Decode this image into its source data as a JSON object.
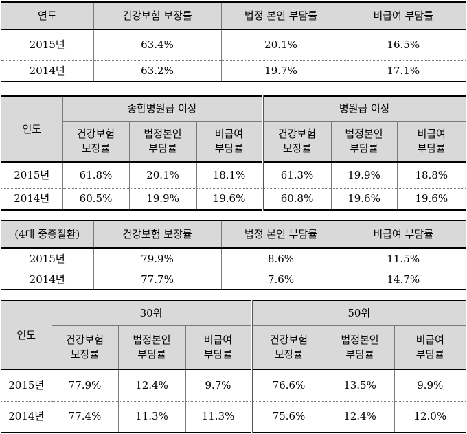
{
  "table1": {
    "headers": [
      "연도",
      "건강보험 보장률",
      "법정 본인 부담률",
      "비급여 부담률"
    ],
    "rows": [
      [
        "2015년",
        "63.4%",
        "20.1%",
        "16.5%"
      ],
      [
        "2014년",
        "63.2%",
        "19.7%",
        "17.1%"
      ]
    ]
  },
  "table2": {
    "year_label": "연도",
    "group1": "종합병원급 이상",
    "group2": "병원급 이상",
    "sub": [
      [
        "건강보험",
        "보장률"
      ],
      [
        "법정본인",
        "부담률"
      ],
      [
        "비급여",
        "부담률"
      ],
      [
        "건강보험",
        "보장률"
      ],
      [
        "법정본인",
        "부담률"
      ],
      [
        "비급여",
        "부담률"
      ]
    ],
    "rows": [
      [
        "2015년",
        "61.8%",
        "20.1%",
        "18.1%",
        "61.3%",
        "19.9%",
        "18.8%"
      ],
      [
        "2014년",
        "60.5%",
        "19.9%",
        "19.6%",
        "60.8%",
        "19.6%",
        "19.6%"
      ]
    ]
  },
  "table3": {
    "headers": [
      "(4대 중증질환)",
      "건강보험 보장률",
      "법정 본인 부담률",
      "비급여 부담률"
    ],
    "rows": [
      [
        "2015년",
        "79.9%",
        "8.6%",
        "11.5%"
      ],
      [
        "2014년",
        "77.7%",
        "7.6%",
        "14.7%"
      ]
    ]
  },
  "table4": {
    "year_label": "연도",
    "group1": "30위",
    "group2": "50위",
    "sub": [
      [
        "건강보험",
        "보장률"
      ],
      [
        "법정본인",
        "부담률"
      ],
      [
        "비급여",
        "부담률"
      ],
      [
        "건강보험",
        "보장률"
      ],
      [
        "법정본인",
        "부담률"
      ],
      [
        "비급여",
        "부담률"
      ]
    ],
    "rows": [
      [
        "2015년",
        "77.9%",
        "12.4%",
        "9.7%",
        "76.6%",
        "13.5%",
        "9.9%"
      ],
      [
        "2014년",
        "77.4%",
        "11.3%",
        "11.3%",
        "75.6%",
        "12.4%",
        "12.0%"
      ]
    ]
  }
}
